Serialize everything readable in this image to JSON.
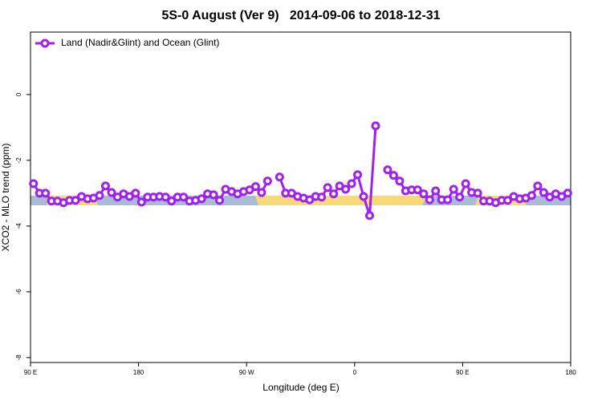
{
  "chart_data": {
    "type": "line",
    "title": "5S-0 August (Ver 9)   2014-09-06 to 2018-12-31",
    "x_label": "Longitude (deg E)",
    "y_label": "XCO2 - MLO trend (ppm)",
    "xlim": [
      90,
      540
    ],
    "ylim": [
      -8.15,
      1.9
    ],
    "xticks": [
      {
        "value": 90,
        "label": "90 E"
      },
      180,
      {
        "value": 270,
        "label": "90 W"
      },
      {
        "value": 360,
        "label": "0"
      },
      {
        "value": 450,
        "label": "90 E"
      },
      {
        "value": 540,
        "label": "180"
      }
    ],
    "yticks": [
      0,
      -2,
      -4,
      -6,
      -8
    ],
    "legend": "top-left",
    "x": [
      92.5,
      97.5,
      102.5,
      107.5,
      112.5,
      117.5,
      122.5,
      127.5,
      132.5,
      137.5,
      142.5,
      147.5,
      152.5,
      157.5,
      162.5,
      167.5,
      172.5,
      177.5,
      182.5,
      187.5,
      192.5,
      197.5,
      202.5,
      207.5,
      212.5,
      217.5,
      222.5,
      227.5,
      232.5,
      237.5,
      242.5,
      247.5,
      252.5,
      257.5,
      262.5,
      267.5,
      272.5,
      277.5,
      282.5,
      287.5,
      292.5,
      297.5,
      302.5,
      307.5,
      312.5,
      317.5,
      322.5,
      327.5,
      332.5,
      337.5,
      342.5,
      347.5,
      352.5,
      357.5,
      362.5,
      367.5,
      372.5,
      377.5,
      382.5,
      387.5,
      392.5,
      397.5,
      402.5,
      407.5,
      412.5,
      417.5,
      422.5,
      427.5,
      432.5,
      437.5,
      442.5,
      447.5,
      452.5,
      457.5,
      462.5,
      467.5,
      472.5,
      477.5,
      482.5,
      487.5,
      492.5,
      497.5,
      502.5,
      507.5,
      512.5,
      517.5,
      522.5,
      527.5,
      532.5,
      537.5
    ],
    "series": [
      {
        "name": "Land (Nadir&Glint) and Ocean (Glint)",
        "color": "#a020f0",
        "values": [
          -2.71,
          -3.0,
          -3.0,
          -3.24,
          -3.24,
          -3.29,
          -3.22,
          -3.22,
          -3.1,
          -3.17,
          -3.15,
          -3.07,
          -2.78,
          -2.98,
          -3.12,
          -3.02,
          -3.1,
          -3.0,
          -3.27,
          -3.12,
          -3.12,
          -3.1,
          -3.12,
          -3.24,
          -3.12,
          -3.12,
          -3.24,
          -3.22,
          -3.17,
          -3.02,
          -3.05,
          -3.22,
          -2.88,
          -2.95,
          -3.02,
          -2.95,
          -2.9,
          -2.8,
          -2.98,
          -2.63,
          null,
          -2.51,
          -3.0,
          -3.0,
          -3.1,
          -3.15,
          -3.2,
          -3.1,
          -3.12,
          -2.83,
          -3.02,
          -2.78,
          -2.88,
          -2.71,
          -2.44,
          -3.1,
          -3.68,
          -0.95,
          null,
          -2.29,
          -2.46,
          -2.63,
          -2.93,
          -2.9,
          -2.9,
          -3.02,
          -3.2,
          -2.93,
          -3.2,
          -3.2,
          -2.88,
          -3.12,
          -2.71,
          -2.98,
          -3.0,
          -3.24,
          -3.24,
          -3.29,
          -3.22,
          -3.22,
          -3.1,
          -3.17,
          -3.15,
          -3.07,
          -2.78,
          -2.98,
          -3.12,
          -3.02,
          -3.1,
          -3.0
        ]
      }
    ]
  }
}
